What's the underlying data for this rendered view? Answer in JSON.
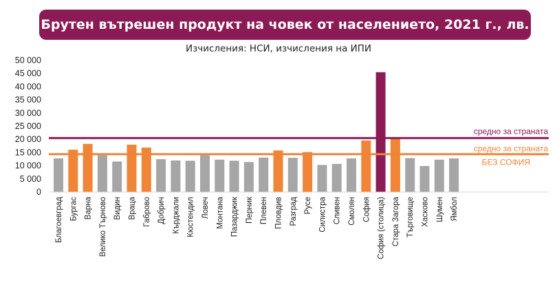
{
  "title": "Брутен вътрешен продукт на човек от населението, 2021 г., лв.",
  "subtitle": "Изчисления: НСИ, изчисления на ИПИ",
  "colors": {
    "banner": "#8b1a55",
    "gray": "#a6a6a6",
    "orange": "#f08437",
    "purple": "#8b1a55"
  },
  "chart_data": {
    "type": "bar",
    "title": "Брутен вътрешен продукт на човек от населението, 2021 г., лв.",
    "subtitle": "Изчисления: НСИ, изчисления на ИПИ",
    "ylim": [
      0,
      50000
    ],
    "yticks": [
      0,
      5000,
      10000,
      15000,
      20000,
      25000,
      30000,
      35000,
      40000,
      45000,
      50000
    ],
    "ytick_labels": [
      "0",
      "5 000",
      "10 000",
      "15 000",
      "20 000",
      "25 000",
      "30 000",
      "35 000",
      "40 000",
      "45 000",
      "50 000"
    ],
    "grid": false,
    "categories": [
      "Благоевград",
      "Бургас",
      "Варна",
      "Велико Търново",
      "Видин",
      "Враца",
      "Габрово",
      "Добрич",
      "Кърджали",
      "Кюстендил",
      "Ловеч",
      "Монтана",
      "Пазарджик",
      "Перник",
      "Плевен",
      "Пловдив",
      "Разград",
      "Русе",
      "Силистра",
      "Сливен",
      "Смолян",
      "София",
      "София (столица)",
      "Стара Загора",
      "Търговище",
      "Хасково",
      "Шумен",
      "Ямбол"
    ],
    "values": [
      12800,
      16100,
      18300,
      14000,
      11600,
      18000,
      16900,
      12500,
      12000,
      11900,
      14000,
      12300,
      11900,
      11400,
      13100,
      15800,
      13000,
      15200,
      10300,
      10700,
      12800,
      19600,
      45500,
      20200,
      12900,
      9900,
      12300,
      12800
    ],
    "bar_colors": [
      "gray",
      "orange",
      "orange",
      "gray",
      "gray",
      "orange",
      "orange",
      "gray",
      "gray",
      "gray",
      "gray",
      "gray",
      "gray",
      "gray",
      "gray",
      "orange",
      "gray",
      "orange",
      "gray",
      "gray",
      "gray",
      "orange",
      "purple",
      "orange",
      "gray",
      "gray",
      "gray",
      "gray"
    ],
    "reference_lines": [
      {
        "value": 20500,
        "color": "purple",
        "label": "средно за страната",
        "label2": ""
      },
      {
        "value": 14400,
        "color": "orange",
        "label": "средно за страната",
        "label2": "БЕЗ СОФИЯ"
      }
    ]
  }
}
